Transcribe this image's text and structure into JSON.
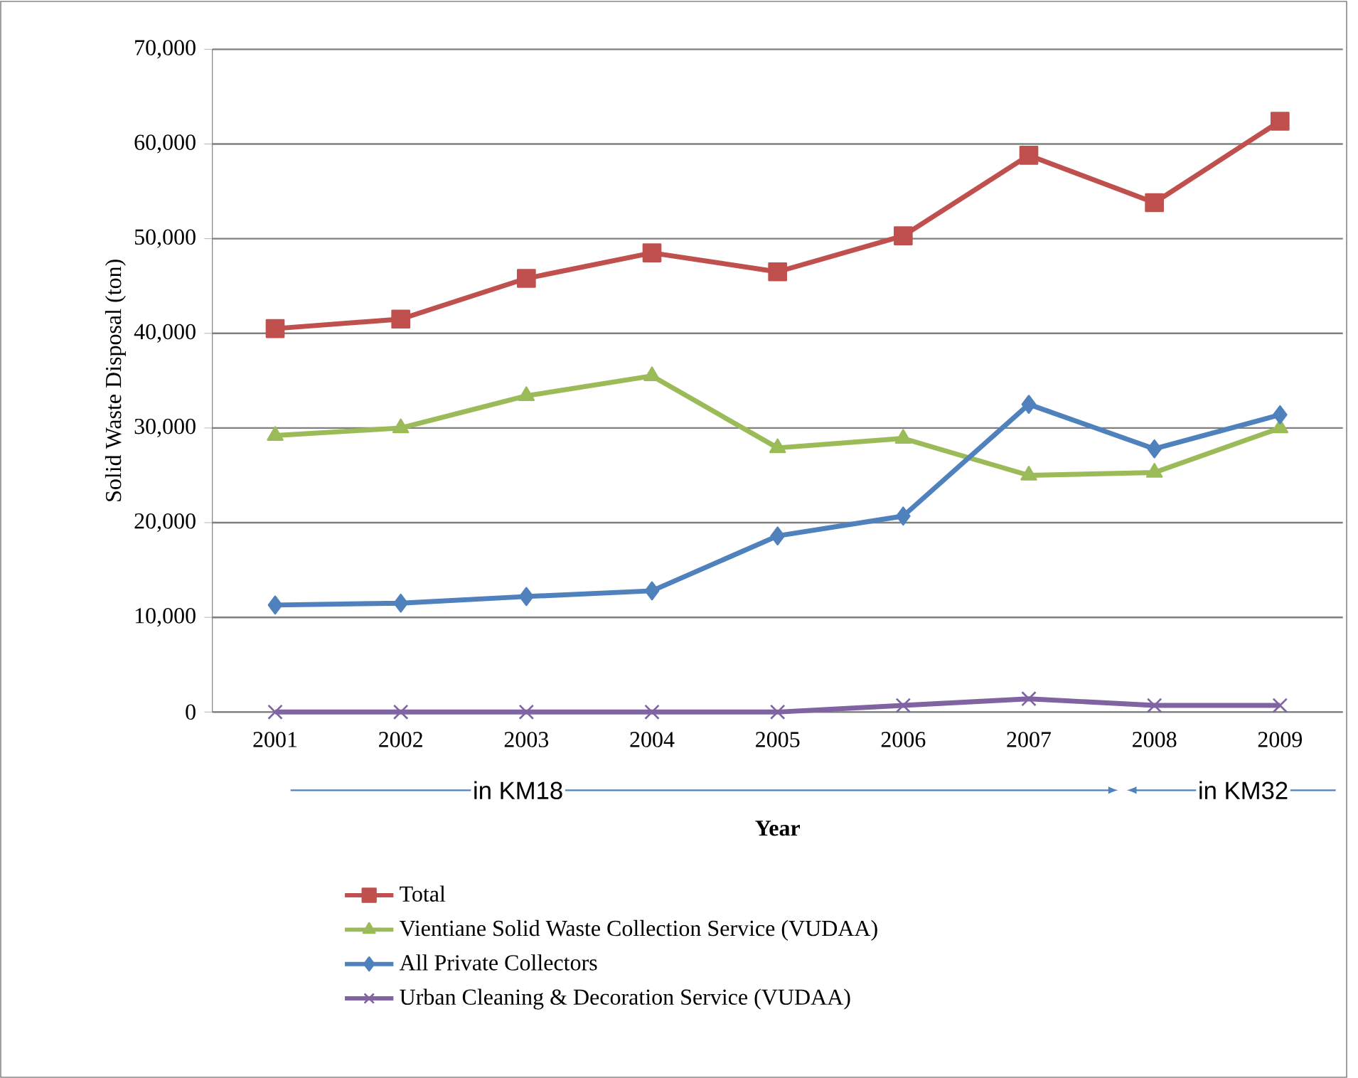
{
  "chart_data": {
    "type": "line",
    "xlabel": "Year",
    "ylabel": "Solid Waste Disposal (ton)",
    "categories": [
      "2001",
      "2002",
      "2003",
      "2004",
      "2005",
      "2006",
      "2007",
      "2008",
      "2009"
    ],
    "series": [
      {
        "name": "Total",
        "color": "#c0504d",
        "marker": "square",
        "values": [
          40500,
          41500,
          45800,
          48500,
          46500,
          50300,
          58800,
          53800,
          62400
        ]
      },
      {
        "name": "Vientiane Solid Waste Collection Service (VUDAA)",
        "color": "#9bbb59",
        "marker": "triangle",
        "values": [
          29200,
          30000,
          33400,
          35500,
          27900,
          28900,
          25000,
          25300,
          30000
        ]
      },
      {
        "name": "All Private Collectors",
        "color": "#4f81bd",
        "marker": "diamond",
        "values": [
          11300,
          11500,
          12200,
          12800,
          18600,
          20700,
          32500,
          27800,
          31400
        ]
      },
      {
        "name": "Urban Cleaning & Decoration Service (VUDAA)",
        "color": "#8064a2",
        "marker": "cross",
        "values": [
          0,
          0,
          0,
          0,
          0,
          700,
          1400,
          700,
          700
        ]
      }
    ],
    "ylim": [
      0,
      70000
    ],
    "yticks": [
      0,
      {
        "value": 10000,
        "label": "10,000"
      },
      {
        "value": 20000,
        "label": "20,000"
      },
      {
        "value": 30000,
        "label": "30,000"
      },
      {
        "value": 40000,
        "label": "40,000"
      },
      {
        "value": 50000,
        "label": "50,000"
      },
      {
        "value": 60000,
        "label": "60,000"
      },
      {
        "value": 70000,
        "label": "70,000"
      }
    ],
    "grid": "y",
    "legend": "bottom",
    "line_style": "solid",
    "annotations": [
      "in KM18",
      "in KM32"
    ]
  }
}
